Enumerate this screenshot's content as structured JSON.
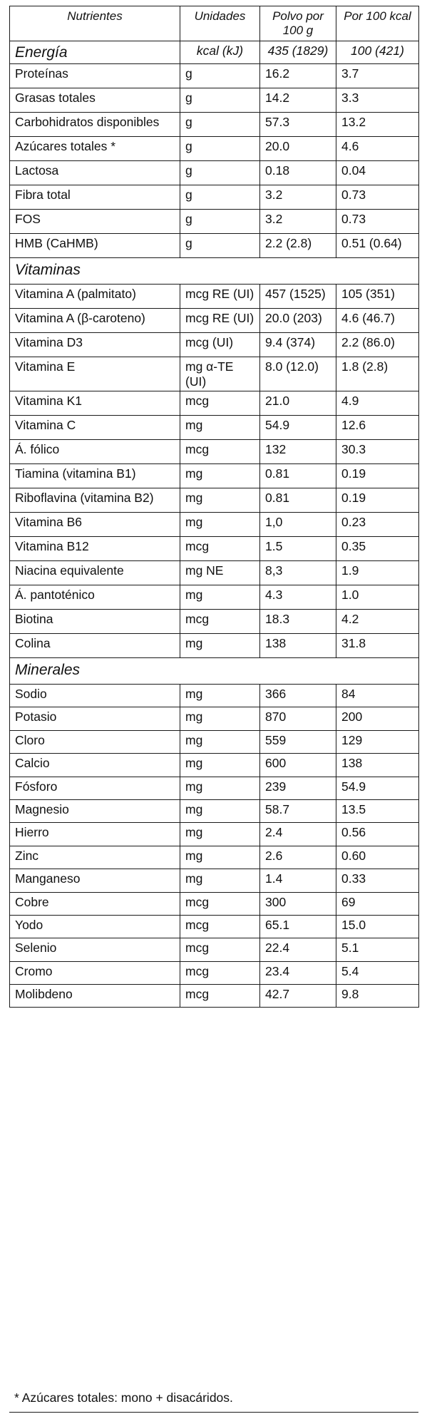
{
  "header": {
    "nutrients": "Nutrientes",
    "units": "Unidades",
    "per100g": "Polvo por 100 g",
    "per100kcal": "Por 100 kcal"
  },
  "energy": {
    "label": "Energía",
    "unit": "kcal (kJ)",
    "v100g": "435 (1829)",
    "v100kcal": "100 (421)"
  },
  "macros": [
    {
      "name": "Proteínas",
      "unit": "g",
      "v100g": "16.2",
      "v100kcal": "3.7"
    },
    {
      "name": "Grasas totales",
      "unit": "g",
      "v100g": "14.2",
      "v100kcal": "3.3"
    },
    {
      "name": "Carbohidratos disponibles",
      "unit": "g",
      "v100g": "57.3",
      "v100kcal": "13.2"
    },
    {
      "name": "Azúcares totales *",
      "unit": "g",
      "v100g": "20.0",
      "v100kcal": "4.6"
    },
    {
      "name": "Lactosa",
      "unit": "g",
      "v100g": "0.18",
      "v100kcal": "0.04"
    },
    {
      "name": "Fibra total",
      "unit": "g",
      "v100g": "3.2",
      "v100kcal": "0.73"
    },
    {
      "name": "FOS",
      "unit": "g",
      "v100g": "3.2",
      "v100kcal": "0.73"
    },
    {
      "name": "HMB (CaHMB)",
      "unit": "g",
      "v100g": "2.2 (2.8)",
      "v100kcal": "0.51 (0.64)"
    }
  ],
  "vitamins_title": "Vitaminas",
  "vitamins": [
    {
      "name": "Vitamina A (palmitato)",
      "unit": "mcg RE (UI)",
      "v100g": "457 (1525)",
      "v100kcal": "105 (351)"
    },
    {
      "name": "Vitamina A (β-caroteno)",
      "unit": "mcg RE (UI)",
      "v100g": "20.0 (203)",
      "v100kcal": "4.6 (46.7)"
    },
    {
      "name": "Vitamina D3",
      "unit": "mcg (UI)",
      "v100g": "9.4 (374)",
      "v100kcal": "2.2 (86.0)"
    },
    {
      "name": "Vitamina E",
      "unit": "mg α-TE (UI)",
      "v100g": "8.0 (12.0)",
      "v100kcal": "1.8 (2.8)"
    },
    {
      "name": "Vitamina K1",
      "unit": "mcg",
      "v100g": "21.0",
      "v100kcal": "4.9"
    },
    {
      "name": "Vitamina C",
      "unit": "mg",
      "v100g": "54.9",
      "v100kcal": "12.6"
    },
    {
      "name": "Á. fólico",
      "unit": "mcg",
      "v100g": "132",
      "v100kcal": "30.3"
    },
    {
      "name": "Tiamina (vitamina B1)",
      "unit": "mg",
      "v100g": "0.81",
      "v100kcal": "0.19"
    },
    {
      "name": "Riboflavina (vitamina B2)",
      "unit": "mg",
      "v100g": "0.81",
      "v100kcal": "0.19"
    },
    {
      "name": "Vitamina B6",
      "unit": "mg",
      "v100g": "1,0",
      "v100kcal": "0.23"
    },
    {
      "name": "Vitamina B12",
      "unit": "mcg",
      "v100g": "1.5",
      "v100kcal": "0.35"
    },
    {
      "name": "Niacina equivalente",
      "unit": "mg NE",
      "v100g": "8,3",
      "v100kcal": "1.9"
    },
    {
      "name": "Á. pantoténico",
      "unit": "mg",
      "v100g": "4.3",
      "v100kcal": "1.0"
    },
    {
      "name": "Biotina",
      "unit": "mcg",
      "v100g": "18.3",
      "v100kcal": "4.2"
    },
    {
      "name": "Colina",
      "unit": "mg",
      "v100g": "138",
      "v100kcal": "31.8"
    }
  ],
  "minerals_title": "Minerales",
  "minerals": [
    {
      "name": "Sodio",
      "unit": "mg",
      "v100g": "366",
      "v100kcal": "84"
    },
    {
      "name": "Potasio",
      "unit": "mg",
      "v100g": "870",
      "v100kcal": "200"
    },
    {
      "name": "Cloro",
      "unit": "mg",
      "v100g": "559",
      "v100kcal": "129"
    },
    {
      "name": "Calcio",
      "unit": "mg",
      "v100g": "600",
      "v100kcal": "138"
    },
    {
      "name": "Fósforo",
      "unit": "mg",
      "v100g": "239",
      "v100kcal": "54.9"
    },
    {
      "name": "Magnesio",
      "unit": "mg",
      "v100g": "58.7",
      "v100kcal": "13.5"
    },
    {
      "name": "Hierro",
      "unit": "mg",
      "v100g": "2.4",
      "v100kcal": "0.56"
    },
    {
      "name": "Zinc",
      "unit": "mg",
      "v100g": "2.6",
      "v100kcal": "0.60"
    },
    {
      "name": "Manganeso",
      "unit": "mg",
      "v100g": "1.4",
      "v100kcal": "0.33"
    },
    {
      "name": "Cobre",
      "unit": "mcg",
      "v100g": "300",
      "v100kcal": "69"
    },
    {
      "name": "Yodo",
      "unit": "mcg",
      "v100g": "65.1",
      "v100kcal": "15.0"
    },
    {
      "name": "Selenio",
      "unit": "mcg",
      "v100g": "22.4",
      "v100kcal": "5.1"
    },
    {
      "name": "Cromo",
      "unit": "mcg",
      "v100g": "23.4",
      "v100kcal": "5.4"
    },
    {
      "name": "Molibdeno",
      "unit": "mcg",
      "v100g": "42.7",
      "v100kcal": "9.8"
    }
  ],
  "footnote": "* Azúcares totales: mono + disacáridos."
}
